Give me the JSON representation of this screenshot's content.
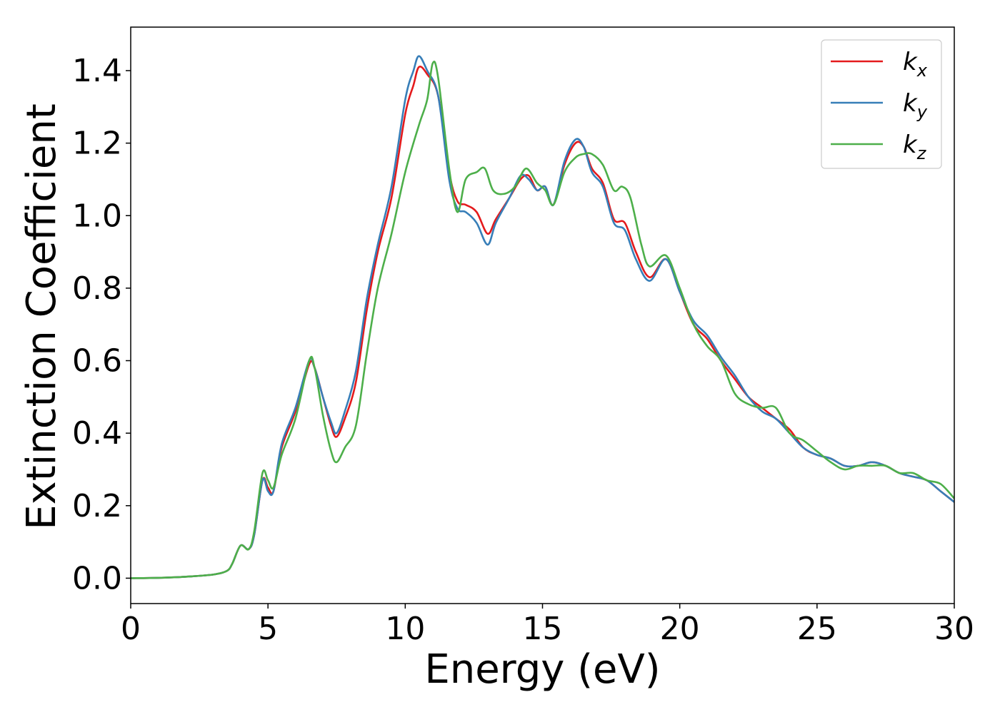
{
  "chart_data": {
    "type": "line",
    "title": "",
    "xlabel": "Energy (eV)",
    "ylabel": "Extinction Coefficient",
    "xlim": [
      0,
      30
    ],
    "ylim": [
      -0.07,
      1.52
    ],
    "xticks": [
      0,
      5,
      10,
      15,
      20,
      25,
      30
    ],
    "xtick_labels": [
      "0",
      "5",
      "10",
      "15",
      "20",
      "25",
      "30"
    ],
    "yticks": [
      0.0,
      0.2,
      0.4,
      0.6,
      0.8,
      1.0,
      1.2,
      1.4
    ],
    "ytick_labels": [
      "0.0",
      "0.2",
      "0.4",
      "0.6",
      "0.8",
      "1.0",
      "1.2",
      "1.4"
    ],
    "grid": false,
    "legend_position": "top-right",
    "series": [
      {
        "name": "k_x",
        "label_main": "k",
        "label_sub": "x",
        "color": "#e41a1c",
        "points": [
          [
            0,
            0.0
          ],
          [
            1,
            0.001
          ],
          [
            2,
            0.004
          ],
          [
            3,
            0.01
          ],
          [
            3.5,
            0.02
          ],
          [
            3.7,
            0.04
          ],
          [
            4.0,
            0.09
          ],
          [
            4.3,
            0.08
          ],
          [
            4.5,
            0.12
          ],
          [
            4.8,
            0.27
          ],
          [
            5.0,
            0.25
          ],
          [
            5.2,
            0.24
          ],
          [
            5.5,
            0.36
          ],
          [
            6.0,
            0.46
          ],
          [
            6.5,
            0.59
          ],
          [
            6.7,
            0.58
          ],
          [
            7.0,
            0.5
          ],
          [
            7.3,
            0.42
          ],
          [
            7.5,
            0.39
          ],
          [
            7.8,
            0.44
          ],
          [
            8.2,
            0.54
          ],
          [
            8.6,
            0.74
          ],
          [
            9.0,
            0.9
          ],
          [
            9.5,
            1.05
          ],
          [
            10.0,
            1.28
          ],
          [
            10.3,
            1.36
          ],
          [
            10.5,
            1.41
          ],
          [
            10.8,
            1.39
          ],
          [
            11.2,
            1.33
          ],
          [
            11.6,
            1.12
          ],
          [
            11.9,
            1.04
          ],
          [
            12.2,
            1.03
          ],
          [
            12.6,
            1.01
          ],
          [
            13.0,
            0.95
          ],
          [
            13.3,
            0.99
          ],
          [
            13.8,
            1.05
          ],
          [
            14.2,
            1.1
          ],
          [
            14.5,
            1.11
          ],
          [
            14.8,
            1.07
          ],
          [
            15.1,
            1.08
          ],
          [
            15.4,
            1.03
          ],
          [
            15.8,
            1.14
          ],
          [
            16.2,
            1.2
          ],
          [
            16.5,
            1.19
          ],
          [
            16.8,
            1.13
          ],
          [
            17.2,
            1.09
          ],
          [
            17.6,
            0.99
          ],
          [
            18.0,
            0.98
          ],
          [
            18.4,
            0.9
          ],
          [
            18.9,
            0.83
          ],
          [
            19.5,
            0.88
          ],
          [
            20.0,
            0.79
          ],
          [
            20.5,
            0.7
          ],
          [
            21.0,
            0.66
          ],
          [
            21.5,
            0.6
          ],
          [
            22.0,
            0.55
          ],
          [
            22.5,
            0.5
          ],
          [
            23.0,
            0.47
          ],
          [
            23.5,
            0.44
          ],
          [
            24.0,
            0.41
          ],
          [
            24.5,
            0.36
          ],
          [
            25.0,
            0.34
          ],
          [
            25.5,
            0.33
          ],
          [
            26.0,
            0.31
          ],
          [
            26.5,
            0.31
          ],
          [
            27.0,
            0.32
          ],
          [
            27.5,
            0.31
          ],
          [
            28.0,
            0.29
          ],
          [
            28.5,
            0.28
          ],
          [
            29.0,
            0.27
          ],
          [
            29.5,
            0.24
          ],
          [
            30.0,
            0.21
          ]
        ]
      },
      {
        "name": "k_y",
        "label_main": "k",
        "label_sub": "y",
        "color": "#377eb8",
        "points": [
          [
            0,
            0.0
          ],
          [
            1,
            0.001
          ],
          [
            2,
            0.004
          ],
          [
            3,
            0.01
          ],
          [
            3.5,
            0.02
          ],
          [
            3.7,
            0.04
          ],
          [
            4.0,
            0.09
          ],
          [
            4.3,
            0.08
          ],
          [
            4.5,
            0.12
          ],
          [
            4.8,
            0.27
          ],
          [
            5.0,
            0.24
          ],
          [
            5.2,
            0.24
          ],
          [
            5.5,
            0.37
          ],
          [
            6.0,
            0.47
          ],
          [
            6.5,
            0.6
          ],
          [
            6.7,
            0.58
          ],
          [
            7.0,
            0.5
          ],
          [
            7.3,
            0.43
          ],
          [
            7.5,
            0.4
          ],
          [
            7.8,
            0.46
          ],
          [
            8.2,
            0.57
          ],
          [
            8.6,
            0.77
          ],
          [
            9.0,
            0.92
          ],
          [
            9.5,
            1.08
          ],
          [
            10.0,
            1.32
          ],
          [
            10.3,
            1.4
          ],
          [
            10.5,
            1.44
          ],
          [
            10.8,
            1.4
          ],
          [
            11.2,
            1.33
          ],
          [
            11.6,
            1.1
          ],
          [
            11.9,
            1.02
          ],
          [
            12.2,
            1.01
          ],
          [
            12.6,
            0.98
          ],
          [
            13.0,
            0.92
          ],
          [
            13.3,
            0.98
          ],
          [
            13.8,
            1.05
          ],
          [
            14.2,
            1.11
          ],
          [
            14.5,
            1.1
          ],
          [
            14.8,
            1.07
          ],
          [
            15.1,
            1.08
          ],
          [
            15.4,
            1.03
          ],
          [
            15.8,
            1.15
          ],
          [
            16.2,
            1.21
          ],
          [
            16.5,
            1.19
          ],
          [
            16.8,
            1.12
          ],
          [
            17.2,
            1.08
          ],
          [
            17.6,
            0.98
          ],
          [
            18.0,
            0.96
          ],
          [
            18.4,
            0.88
          ],
          [
            18.9,
            0.82
          ],
          [
            19.5,
            0.88
          ],
          [
            20.0,
            0.79
          ],
          [
            20.5,
            0.71
          ],
          [
            21.0,
            0.67
          ],
          [
            21.5,
            0.61
          ],
          [
            22.0,
            0.56
          ],
          [
            22.5,
            0.5
          ],
          [
            23.0,
            0.46
          ],
          [
            23.5,
            0.44
          ],
          [
            24.0,
            0.4
          ],
          [
            24.5,
            0.36
          ],
          [
            25.0,
            0.34
          ],
          [
            25.5,
            0.33
          ],
          [
            26.0,
            0.31
          ],
          [
            26.5,
            0.31
          ],
          [
            27.0,
            0.32
          ],
          [
            27.5,
            0.31
          ],
          [
            28.0,
            0.29
          ],
          [
            28.5,
            0.28
          ],
          [
            29.0,
            0.27
          ],
          [
            29.5,
            0.24
          ],
          [
            30.0,
            0.21
          ]
        ]
      },
      {
        "name": "k_z",
        "label_main": "k",
        "label_sub": "z",
        "color": "#4daf4a",
        "points": [
          [
            0,
            0.0
          ],
          [
            1,
            0.001
          ],
          [
            2,
            0.004
          ],
          [
            3,
            0.01
          ],
          [
            3.5,
            0.02
          ],
          [
            3.7,
            0.04
          ],
          [
            4.0,
            0.09
          ],
          [
            4.3,
            0.08
          ],
          [
            4.5,
            0.13
          ],
          [
            4.8,
            0.29
          ],
          [
            5.0,
            0.27
          ],
          [
            5.2,
            0.25
          ],
          [
            5.5,
            0.34
          ],
          [
            6.0,
            0.44
          ],
          [
            6.5,
            0.6
          ],
          [
            6.7,
            0.58
          ],
          [
            7.0,
            0.45
          ],
          [
            7.3,
            0.35
          ],
          [
            7.5,
            0.32
          ],
          [
            7.8,
            0.36
          ],
          [
            8.2,
            0.42
          ],
          [
            8.6,
            0.62
          ],
          [
            9.0,
            0.8
          ],
          [
            9.5,
            0.95
          ],
          [
            10.0,
            1.12
          ],
          [
            10.5,
            1.25
          ],
          [
            10.8,
            1.32
          ],
          [
            11.0,
            1.42
          ],
          [
            11.2,
            1.38
          ],
          [
            11.6,
            1.13
          ],
          [
            11.9,
            1.01
          ],
          [
            12.2,
            1.1
          ],
          [
            12.6,
            1.12
          ],
          [
            12.9,
            1.13
          ],
          [
            13.2,
            1.07
          ],
          [
            13.6,
            1.06
          ],
          [
            14.0,
            1.08
          ],
          [
            14.4,
            1.13
          ],
          [
            14.8,
            1.09
          ],
          [
            15.1,
            1.07
          ],
          [
            15.4,
            1.03
          ],
          [
            15.8,
            1.12
          ],
          [
            16.2,
            1.16
          ],
          [
            16.5,
            1.17
          ],
          [
            16.8,
            1.17
          ],
          [
            17.2,
            1.14
          ],
          [
            17.6,
            1.07
          ],
          [
            17.9,
            1.08
          ],
          [
            18.2,
            1.05
          ],
          [
            18.6,
            0.92
          ],
          [
            18.9,
            0.86
          ],
          [
            19.5,
            0.89
          ],
          [
            20.0,
            0.8
          ],
          [
            20.5,
            0.7
          ],
          [
            21.0,
            0.64
          ],
          [
            21.5,
            0.6
          ],
          [
            22.0,
            0.51
          ],
          [
            22.5,
            0.48
          ],
          [
            23.0,
            0.47
          ],
          [
            23.5,
            0.47
          ],
          [
            24.0,
            0.4
          ],
          [
            24.5,
            0.38
          ],
          [
            25.0,
            0.35
          ],
          [
            25.5,
            0.32
          ],
          [
            26.0,
            0.3
          ],
          [
            26.5,
            0.31
          ],
          [
            27.0,
            0.31
          ],
          [
            27.5,
            0.31
          ],
          [
            28.0,
            0.29
          ],
          [
            28.5,
            0.29
          ],
          [
            29.0,
            0.27
          ],
          [
            29.5,
            0.26
          ],
          [
            30.0,
            0.22
          ]
        ]
      }
    ]
  }
}
